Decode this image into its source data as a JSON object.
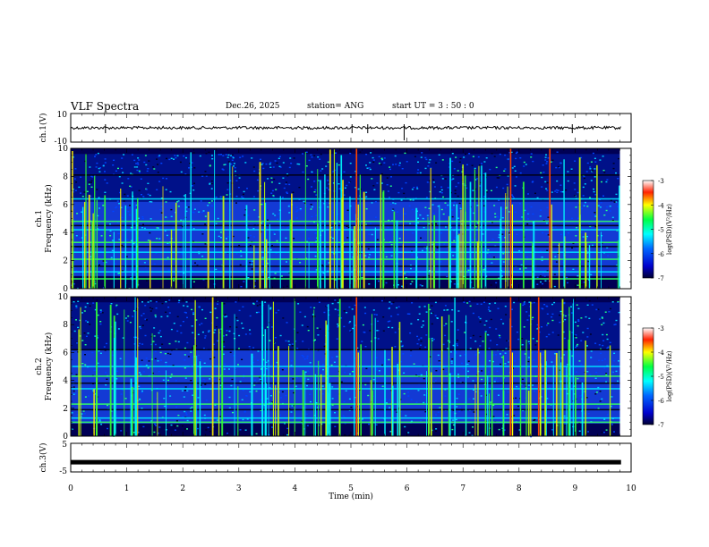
{
  "header": {
    "title": "VLF Spectra",
    "date": "Dec.26, 2025",
    "station": "station= ANG",
    "start": "start  UT =   3  : 50 : 0"
  },
  "chart_data": [
    {
      "type": "line",
      "panel": "ch1-waveform",
      "ylabel": "ch.1(V)",
      "ylim": [
        -10,
        10
      ],
      "yticks": [
        "10",
        "-10"
      ],
      "xlim": [
        0,
        10
      ],
      "baseline": 0,
      "spikes_x": [
        0.62,
        5.02,
        5.3,
        5.95,
        8.95
      ]
    },
    {
      "type": "heatmap",
      "panel": "ch1-spectrogram",
      "ylabel": "ch.1\nFrequency (kHz)",
      "ylim": [
        0,
        10
      ],
      "yticks": [
        "0",
        "2",
        "4",
        "6",
        "8",
        "10"
      ],
      "xlim": [
        0,
        9.8
      ],
      "colorbar": {
        "label": "log(PSD)(V²/Hz)",
        "ticks": [
          "-3",
          "-4",
          "-5",
          "-6",
          "-7"
        ],
        "range": [
          -7,
          -3
        ]
      },
      "bands_khz": [
        0.7,
        1.2,
        1.6,
        2.1,
        2.6,
        3.0,
        3.3,
        4.2,
        4.5,
        4.8,
        6.4,
        8.1
      ],
      "strong_events_min": [
        5.1,
        7.85,
        8.55
      ]
    },
    {
      "type": "heatmap",
      "panel": "ch2-spectrogram",
      "ylabel": "ch.2\nFrequency (kHz)",
      "ylim": [
        0,
        10
      ],
      "yticks": [
        "0",
        "2",
        "4",
        "6",
        "8",
        "10"
      ],
      "xlim": [
        0,
        9.8
      ],
      "colorbar": {
        "label": "log(PSD)(V²/Hz)",
        "ticks": [
          "-3",
          "-4",
          "-5",
          "-6",
          "-7"
        ],
        "range": [
          -7,
          -3
        ]
      },
      "bands_khz": [
        1.0,
        1.3,
        1.9,
        2.3,
        3.4,
        3.8,
        4.3,
        5.0,
        6.2
      ],
      "strong_events_min": [
        5.1,
        7.85,
        8.35
      ]
    },
    {
      "type": "line",
      "panel": "ch3-waveform",
      "ylabel": "ch.3(V)",
      "ylim": [
        -5,
        5
      ],
      "yticks": [
        "5",
        "-5"
      ],
      "xlim": [
        0,
        10
      ],
      "baseline": -1.6
    }
  ],
  "xaxis": {
    "label": "Time (min)",
    "ticks": [
      "0",
      "1",
      "2",
      "3",
      "4",
      "5",
      "6",
      "7",
      "8",
      "9",
      "10"
    ]
  }
}
